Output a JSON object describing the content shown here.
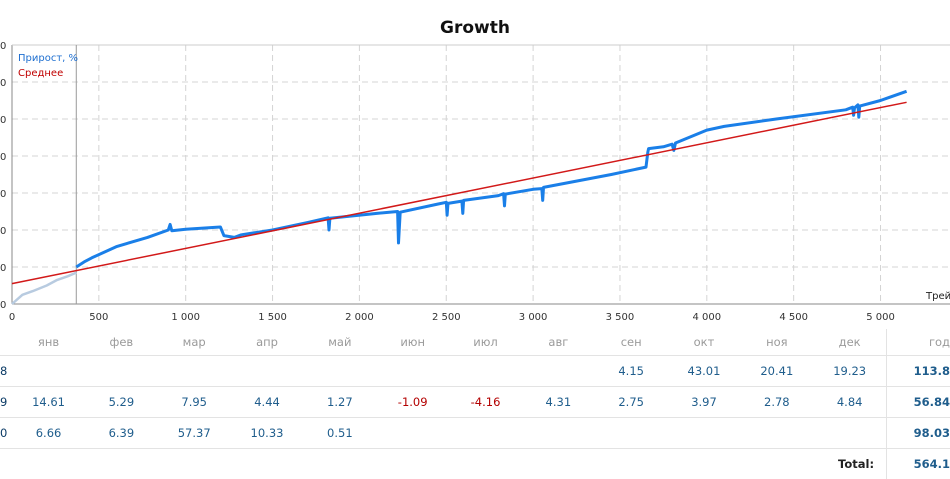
{
  "chart_data": {
    "type": "line",
    "title": "Growth",
    "xlabel": "Трей",
    "ylabel": "",
    "xlim": [
      0,
      5400
    ],
    "ylim": [
      0,
      700
    ],
    "x_ticks": [
      0,
      500,
      1000,
      1500,
      2000,
      2500,
      3000,
      3500,
      4000,
      4500,
      5000
    ],
    "x_tick_labels": [
      "0",
      "500",
      "1 000",
      "1 500",
      "2 000",
      "2 500",
      "3 000",
      "3 500",
      "4 000",
      "4 500",
      "5 000"
    ],
    "y_ticks": [
      0,
      100,
      200,
      300,
      400,
      500,
      600,
      700
    ],
    "y_tick_labels": [
      "0",
      "0",
      "0",
      "0",
      "0",
      "0",
      "0",
      "0"
    ],
    "legend": [
      "Прирост, %",
      "Среднее"
    ],
    "vertical_marker_x": 370,
    "series": [
      {
        "name": "Прирост, % (early)",
        "color": "#b8cbe0",
        "x": [
          0,
          60,
          120,
          200,
          260,
          320,
          370
        ],
        "y": [
          0,
          25,
          35,
          50,
          65,
          75,
          85
        ]
      },
      {
        "name": "Прирост, %",
        "color": "#1a7fe8",
        "x": [
          370,
          420,
          460,
          600,
          780,
          900,
          910,
          920,
          1000,
          1200,
          1220,
          1280,
          1320,
          1500,
          1700,
          1820,
          1825,
          1830,
          2100,
          2220,
          2225,
          2235,
          2450,
          2500,
          2505,
          2510,
          2590,
          2595,
          2600,
          2800,
          2830,
          2835,
          2840,
          3000,
          3050,
          3055,
          3060,
          3450,
          3650,
          3660,
          3665,
          3750,
          3800,
          3810,
          3820,
          4000,
          4100,
          4400,
          4800,
          4840,
          4845,
          4850,
          4870,
          4875,
          4880,
          5000,
          5150
        ],
        "y": [
          100,
          115,
          125,
          155,
          180,
          200,
          215,
          198,
          202,
          208,
          185,
          180,
          187,
          200,
          220,
          233,
          200,
          232,
          245,
          250,
          165,
          248,
          270,
          275,
          240,
          272,
          278,
          245,
          280,
          293,
          298,
          265,
          297,
          310,
          312,
          280,
          315,
          350,
          370,
          410,
          420,
          425,
          432,
          415,
          435,
          470,
          480,
          500,
          525,
          532,
          510,
          530,
          538,
          505,
          535,
          550,
          575
        ]
      },
      {
        "name": "Среднее",
        "color": "#d21919",
        "x": [
          0,
          5150
        ],
        "y": [
          55,
          545
        ]
      }
    ]
  },
  "table": {
    "header": [
      "янв",
      "фев",
      "мар",
      "апр",
      "май",
      "июн",
      "июл",
      "авг",
      "сен",
      "окт",
      "ноя",
      "дек",
      "год"
    ],
    "rows": [
      {
        "year": "8",
        "months": [
          "",
          "",
          "",
          "",
          "",
          "",
          "",
          "",
          "4.15",
          "43.01",
          "20.41",
          "19.23"
        ],
        "total": "113.8"
      },
      {
        "year": "9",
        "months": [
          "14.61",
          "5.29",
          "7.95",
          "4.44",
          "1.27",
          "-1.09",
          "-4.16",
          "4.31",
          "2.75",
          "3.97",
          "2.78",
          "4.84"
        ],
        "total": "56.84"
      },
      {
        "year": "0",
        "months": [
          "6.66",
          "6.39",
          "57.37",
          "10.33",
          "0.51",
          "",
          "",
          "",
          "",
          "",
          "",
          ""
        ],
        "total": "98.03"
      }
    ],
    "total_label": "Total:",
    "total_value": "564.1"
  }
}
